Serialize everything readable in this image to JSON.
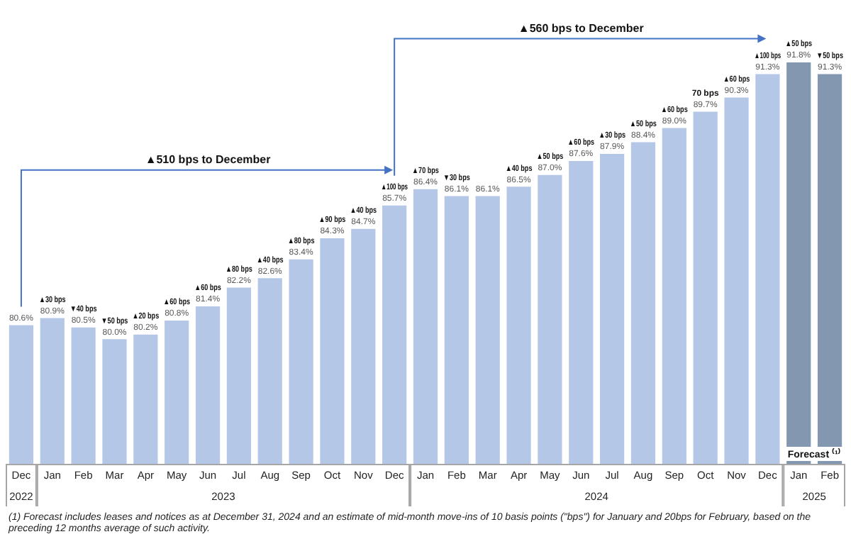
{
  "chart_data": {
    "type": "bar",
    "categories": [
      "Dec",
      "Jan",
      "Feb",
      "Mar",
      "Apr",
      "May",
      "Jun",
      "Jul",
      "Aug",
      "Sep",
      "Oct",
      "Nov",
      "Dec",
      "Jan",
      "Feb",
      "Mar",
      "Apr",
      "May",
      "Jun",
      "Jul",
      "Aug",
      "Sep",
      "Oct",
      "Nov",
      "Dec",
      "Jan",
      "Feb"
    ],
    "values": [
      80.6,
      80.9,
      80.5,
      80.0,
      80.2,
      80.8,
      81.4,
      82.2,
      82.6,
      83.4,
      84.3,
      84.7,
      85.7,
      86.4,
      86.1,
      86.1,
      86.5,
      87.0,
      87.6,
      87.9,
      88.4,
      89.0,
      89.7,
      90.3,
      91.3,
      91.8,
      91.3
    ],
    "value_labels": [
      "80.6%",
      "▲30 bps\n80.9%",
      "▼40 bps\n80.5%",
      "▼50 bps\n80.0%",
      "▲20 bps\n80.2%",
      "▲60 bps\n80.8%",
      "▲60 bps\n81.4%",
      "▲80 bps\n82.2%",
      "▲40 bps\n82.6%",
      "▲80 bps\n83.4%",
      "▲90 bps\n84.3%",
      "▲40 bps\n84.7%",
      "▲100 bps\n85.7%",
      "▲70 bps\n86.4%",
      "▼30 bps\n86.1%",
      "86.1%",
      "▲40 bps\n86.5%",
      "▲50 bps\n87.0%",
      "▲60 bps\n87.6%",
      "▲30 bps\n87.9%",
      "▲50 bps\n88.4%",
      "▲60 bps\n89.0%",
      "70 bps\n89.7%",
      "▲60 bps\n90.3%",
      "▲100 bps\n91.3%",
      "▲50 bps\n91.8%",
      "▼50 bps\n91.3%"
    ],
    "colors": [
      "#b4c7e7",
      "#b4c7e7",
      "#b4c7e7",
      "#b4c7e7",
      "#b4c7e7",
      "#b4c7e7",
      "#b4c7e7",
      "#b4c7e7",
      "#b4c7e7",
      "#b4c7e7",
      "#b4c7e7",
      "#b4c7e7",
      "#b4c7e7",
      "#b4c7e7",
      "#b4c7e7",
      "#b4c7e7",
      "#b4c7e7",
      "#b4c7e7",
      "#b4c7e7",
      "#b4c7e7",
      "#b4c7e7",
      "#b4c7e7",
      "#b4c7e7",
      "#b4c7e7",
      "#b4c7e7",
      "#8497b0",
      "#8497b0"
    ],
    "annotations": [
      "▲510 bps to December",
      "▲560 bps to December",
      "2022",
      "2023",
      "2024",
      "2025",
      "Forecast ⁽¹⁾",
      "(1) Forecast includes leases and notices as at December 31, 2024 and an estimate of mid-month move-ins of 10 basis points (\"bps\") for January and 20bps for February, based on the preceding 12 months average of such activity."
    ],
    "grid": false,
    "legend": false
  }
}
